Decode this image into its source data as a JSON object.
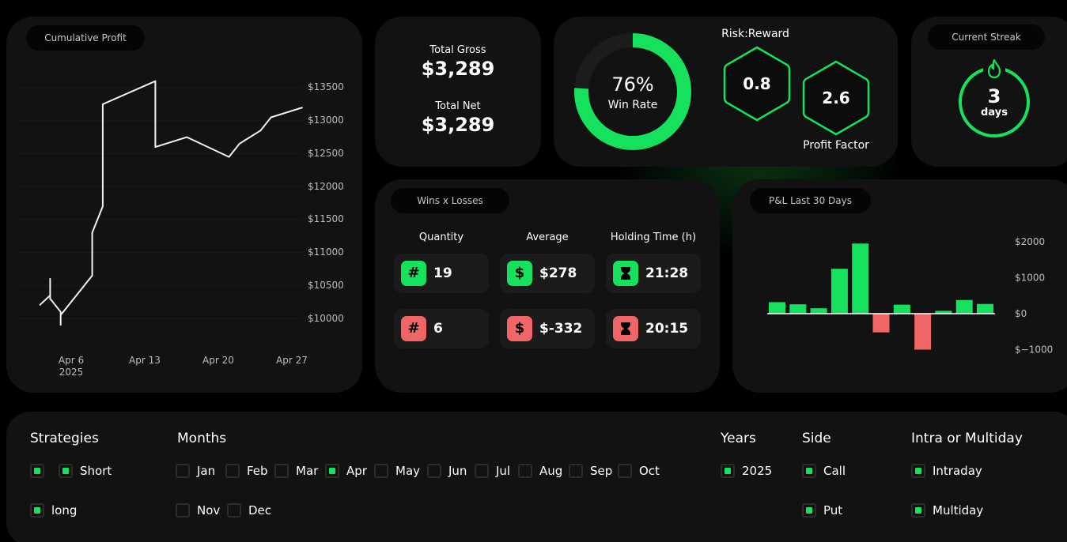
{
  "cumulative_profit": {
    "title": "Cumulative Profit",
    "y_ticks": [
      "$13500",
      "$13000",
      "$12500",
      "$12000",
      "$11500",
      "$11000",
      "$10500",
      "$10000"
    ],
    "x_ticks": [
      {
        "label": "Apr 6",
        "sub": "2025"
      },
      {
        "label": "Apr 13",
        "sub": ""
      },
      {
        "label": "Apr 20",
        "sub": ""
      },
      {
        "label": "Apr 27",
        "sub": ""
      }
    ]
  },
  "chart_data": [
    {
      "type": "line",
      "title": "Cumulative Profit",
      "x": [
        "Apr 3",
        "Apr 4",
        "Apr 4",
        "Apr 4",
        "Apr 5",
        "Apr 5",
        "Apr 5",
        "Apr 8",
        "Apr 8",
        "Apr 9",
        "Apr 9",
        "Apr 14",
        "Apr 14",
        "Apr 17",
        "Apr 21",
        "Apr 22",
        "Apr 24",
        "Apr 25",
        "Apr 28"
      ],
      "series": [
        {
          "values": [
            10200,
            10350,
            10600,
            10300,
            10100,
            9900,
            10050,
            10650,
            11300,
            11700,
            13250,
            13600,
            12600,
            12750,
            12450,
            12650,
            12850,
            13050,
            13200
          ]
        }
      ],
      "ylim": [
        9700,
        13700
      ],
      "yticks": [
        10000,
        10500,
        11000,
        11500,
        12000,
        12500,
        13000,
        13500
      ]
    },
    {
      "type": "bar",
      "title": "P&L Last 30 Days",
      "categories": [
        "1",
        "2",
        "3",
        "4",
        "5",
        "6",
        "7",
        "8",
        "9",
        "10",
        "11"
      ],
      "values": [
        320,
        260,
        150,
        1250,
        1950,
        -520,
        250,
        -1000,
        80,
        380,
        270
      ],
      "ylim": [
        -1100,
        2100
      ],
      "yticks": [
        2000,
        1000,
        0,
        -1000
      ],
      "ytick_labels": [
        "$2000",
        "$1000",
        "$0",
        "$−1000"
      ]
    }
  ],
  "totals": {
    "gross_label": "Total Gross",
    "gross_value": "$3,289",
    "net_label": "Total Net",
    "net_value": "$3,289"
  },
  "win_rate": {
    "value": "76%",
    "label": "Win Rate",
    "fraction": 0.76
  },
  "risk_reward": {
    "label": "Risk:Reward",
    "value": "0.8"
  },
  "profit_factor": {
    "label": "Profit Factor",
    "value": "2.6"
  },
  "streak": {
    "title": "Current Streak",
    "value": "3",
    "unit": "days"
  },
  "wins_losses": {
    "title": "Wins x Losses",
    "columns": [
      "Quantity",
      "Average",
      "Holding Time (h)"
    ],
    "wins": [
      {
        "icon": "#",
        "value": "19"
      },
      {
        "icon": "$",
        "value": "$278"
      },
      {
        "icon": "hourglass",
        "value": "21:28"
      }
    ],
    "losses": [
      {
        "icon": "#",
        "value": "6"
      },
      {
        "icon": "$",
        "value": "$-332"
      },
      {
        "icon": "hourglass",
        "value": "20:15"
      }
    ]
  },
  "pnl": {
    "title": "P&L Last 30 Days"
  },
  "filters": {
    "strategies": {
      "title": "Strategies",
      "options": [
        {
          "label": "",
          "checked": true
        },
        {
          "label": "Short",
          "checked": true
        },
        {
          "label": "long",
          "checked": true
        }
      ]
    },
    "months": {
      "title": "Months",
      "options": [
        {
          "label": "Jan",
          "checked": false
        },
        {
          "label": "Feb",
          "checked": false
        },
        {
          "label": "Mar",
          "checked": false
        },
        {
          "label": "Apr",
          "checked": true
        },
        {
          "label": "May",
          "checked": false
        },
        {
          "label": "Jun",
          "checked": false
        },
        {
          "label": "Jul",
          "checked": false
        },
        {
          "label": "Aug",
          "checked": false
        },
        {
          "label": "Sep",
          "checked": false
        },
        {
          "label": "Oct",
          "checked": false
        },
        {
          "label": "Nov",
          "checked": false
        },
        {
          "label": "Dec",
          "checked": false
        }
      ]
    },
    "years": {
      "title": "Years",
      "options": [
        {
          "label": "2025",
          "checked": true
        }
      ]
    },
    "side": {
      "title": "Side",
      "options": [
        {
          "label": "Call",
          "checked": true
        },
        {
          "label": "Put",
          "checked": true
        }
      ]
    },
    "intra": {
      "title": "Intra or Multiday",
      "options": [
        {
          "label": "Intraday",
          "checked": true
        },
        {
          "label": "Multiday",
          "checked": true
        }
      ]
    }
  },
  "colors": {
    "accent": "#16e15c",
    "loss": "#f06666",
    "card": "#121212",
    "background": "#000000"
  }
}
